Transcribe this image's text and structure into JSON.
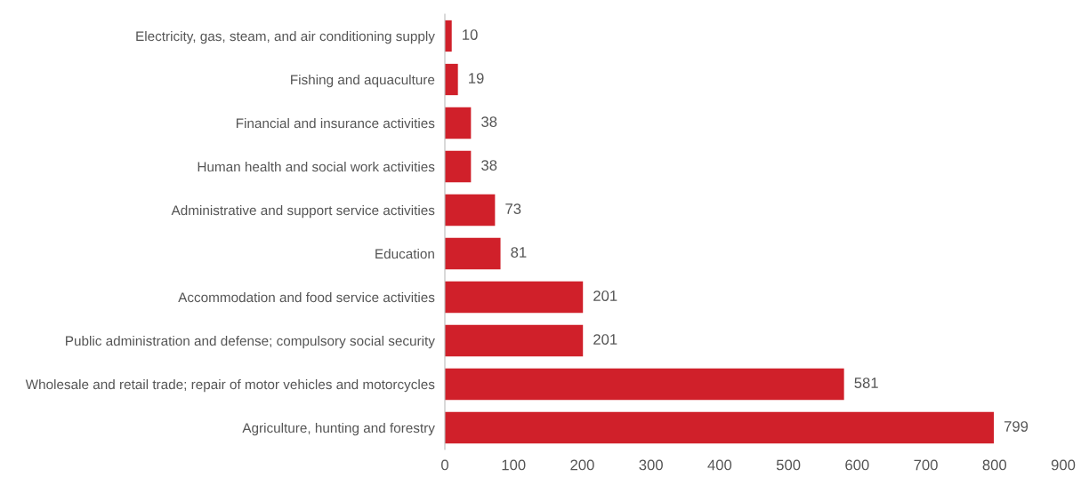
{
  "chart_data": {
    "type": "bar",
    "orientation": "horizontal",
    "categories": [
      "Electricity, gas, steam, and air conditioning supply",
      "Fishing and aquaculture",
      "Financial and insurance activities",
      "Human health and social work activities",
      "Administrative and support service activities",
      "Education",
      "Accommodation and food service activities",
      "Public administration and defense; compulsory social security",
      "Wholesale and retail trade; repair of motor vehicles and motorcycles",
      "Agriculture, hunting and forestry"
    ],
    "values": [
      10,
      19,
      38,
      38,
      73,
      81,
      201,
      201,
      581,
      799
    ],
    "color": "#d0202a",
    "xlim": [
      0,
      900
    ],
    "xticks": [
      0,
      100,
      200,
      300,
      400,
      500,
      600,
      700,
      800,
      900
    ],
    "data_labels": true,
    "grid": false,
    "legend": false
  }
}
